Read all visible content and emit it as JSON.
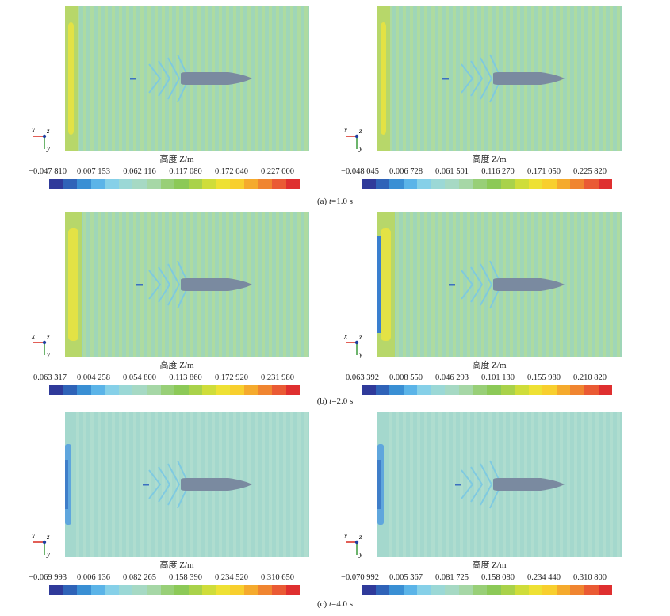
{
  "figure": {
    "colorbar_label": "高度 Z/m",
    "colorbar_colors": [
      "#2f3a9a",
      "#2f63b8",
      "#3a8fd4",
      "#5bb4e8",
      "#86d0e8",
      "#9bd8d6",
      "#a6d9c4",
      "#a6d7a6",
      "#98cf77",
      "#8cc957",
      "#a9d24a",
      "#cfdd3a",
      "#eee134",
      "#f8cf2e",
      "#f5aa2d",
      "#f08530",
      "#ea5a34",
      "#df2f2f"
    ],
    "rows": [
      {
        "caption_prefix": "(a) ",
        "caption_var": "t",
        "caption_suffix": "=1.0 s",
        "panels": [
          {
            "ticks": [
              "−0.047 810",
              "0.007 153",
              "0.062 116",
              "0.117 080",
              "0.172 040",
              "0.227 000"
            ]
          },
          {
            "ticks": [
              "−0.048 045",
              "0.006 728",
              "0.061 501",
              "0.116 270",
              "0.171 050",
              "0.225 820"
            ]
          }
        ]
      },
      {
        "caption_prefix": "(b) ",
        "caption_var": "t",
        "caption_suffix": "=2.0 s",
        "panels": [
          {
            "ticks": [
              "−0.063 317",
              "0.004 258",
              "0.054 800",
              "0.113 860",
              "0.172 920",
              "0.231 980"
            ]
          },
          {
            "ticks": [
              "−0.063 392",
              "0.008 550",
              "0.046 293",
              "0.101 130",
              "0.155 980",
              "0.210 820"
            ]
          }
        ]
      },
      {
        "caption_prefix": "(c) ",
        "caption_var": "t",
        "caption_suffix": "=4.0 s",
        "panels": [
          {
            "ticks": [
              "−0.069 993",
              "0.006 136",
              "0.082 265",
              "0.158 390",
              "0.234 520",
              "0.310 650"
            ]
          },
          {
            "ticks": [
              "−0.070 992",
              "0.005 367",
              "0.081 725",
              "0.158 080",
              "0.234 440",
              "0.310 800"
            ]
          }
        ]
      }
    ],
    "axes_triad": {
      "x": "x",
      "y": "y",
      "z": "z"
    }
  }
}
